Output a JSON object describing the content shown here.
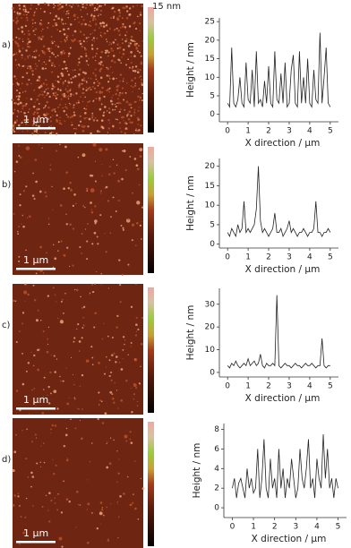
{
  "panels": [
    {
      "label": "a)",
      "scale_bar": "1 µm",
      "colorbar_label": "15 nm"
    },
    {
      "label": "b)",
      "scale_bar": "1 µm"
    },
    {
      "label": "c)",
      "scale_bar": "1 µm"
    },
    {
      "label": "d)",
      "scale_bar": "1 µm"
    }
  ],
  "chart_data": [
    {
      "type": "line",
      "x_label": "X direction / µm",
      "y_label": "Height / nm",
      "color": "#222222",
      "x": [
        0,
        0.1,
        0.2,
        0.3,
        0.4,
        0.5,
        0.6,
        0.7,
        0.8,
        0.9,
        1,
        1.1,
        1.2,
        1.3,
        1.4,
        1.5,
        1.6,
        1.7,
        1.8,
        1.9,
        2,
        2.1,
        2.2,
        2.3,
        2.4,
        2.5,
        2.6,
        2.7,
        2.8,
        2.9,
        3,
        3.1,
        3.2,
        3.3,
        3.4,
        3.5,
        3.6,
        3.7,
        3.8,
        3.9,
        4,
        4.1,
        4.2,
        4.3,
        4.4,
        4.5,
        4.6,
        4.7,
        4.8,
        4.9,
        5
      ],
      "values": [
        3,
        2,
        18,
        3,
        2,
        4,
        10,
        3,
        2,
        14,
        4,
        3,
        12,
        2,
        17,
        3,
        4,
        2,
        9,
        3,
        13,
        3,
        2,
        17,
        4,
        3,
        11,
        3,
        14,
        2,
        3,
        12,
        16,
        3,
        2,
        17,
        3,
        10,
        3,
        15,
        3,
        2,
        12,
        4,
        3,
        22,
        3,
        10,
        18,
        3,
        2
      ],
      "xlim": [
        -0.4,
        5.4
      ],
      "xticks": [
        0,
        1,
        2,
        3,
        4,
        5
      ],
      "ylim": [
        -2,
        26
      ],
      "yticks": [
        0,
        5,
        10,
        15,
        20,
        25
      ]
    },
    {
      "type": "line",
      "x_label": "X direction / µm",
      "y_label": "Height / nm",
      "color": "#222222",
      "x": [
        0,
        0.1,
        0.2,
        0.3,
        0.4,
        0.5,
        0.6,
        0.7,
        0.8,
        0.9,
        1,
        1.1,
        1.2,
        1.3,
        1.4,
        1.5,
        1.6,
        1.7,
        1.8,
        1.9,
        2,
        2.1,
        2.2,
        2.3,
        2.4,
        2.5,
        2.6,
        2.7,
        2.8,
        2.9,
        3,
        3.1,
        3.2,
        3.3,
        3.4,
        3.5,
        3.6,
        3.7,
        3.8,
        3.9,
        4,
        4.1,
        4.2,
        4.3,
        4.4,
        4.5,
        4.6,
        4.7,
        4.8,
        4.9,
        5
      ],
      "values": [
        3,
        2,
        4,
        3,
        2,
        5,
        3,
        4,
        11,
        3,
        4,
        3,
        4,
        5,
        9,
        20,
        6,
        3,
        4,
        3,
        2,
        3,
        4,
        8,
        3,
        3,
        4,
        2,
        3,
        4,
        6,
        3,
        4,
        3,
        2,
        3,
        3,
        4,
        3,
        2,
        3,
        3,
        4,
        11,
        3,
        3,
        2,
        3,
        3,
        4,
        3
      ],
      "xlim": [
        -0.4,
        5.4
      ],
      "xticks": [
        0,
        1,
        2,
        3,
        4,
        5
      ],
      "ylim": [
        -1,
        22
      ],
      "yticks": [
        0,
        5,
        10,
        15,
        20
      ]
    },
    {
      "type": "line",
      "x_label": "X direction / µm",
      "y_label": "Height / nm",
      "color": "#222222",
      "x": [
        0,
        0.1,
        0.2,
        0.3,
        0.4,
        0.5,
        0.6,
        0.7,
        0.8,
        0.9,
        1,
        1.1,
        1.2,
        1.3,
        1.4,
        1.5,
        1.6,
        1.7,
        1.8,
        1.9,
        2,
        2.1,
        2.2,
        2.3,
        2.4,
        2.5,
        2.6,
        2.7,
        2.8,
        2.9,
        3,
        3.1,
        3.2,
        3.3,
        3.4,
        3.5,
        3.6,
        3.7,
        3.8,
        3.9,
        4,
        4.1,
        4.2,
        4.3,
        4.4,
        4.5,
        4.6,
        4.7,
        4.8,
        4.9,
        5
      ],
      "values": [
        3,
        2,
        4,
        3,
        5,
        3,
        2,
        3,
        4,
        3,
        6,
        3,
        4,
        5,
        3,
        4,
        8,
        3,
        2,
        4,
        3,
        3,
        4,
        3,
        34,
        3,
        2,
        3,
        4,
        3,
        3,
        2,
        3,
        4,
        3,
        3,
        2,
        3,
        4,
        3,
        3,
        4,
        3,
        2,
        3,
        3,
        15,
        3,
        2,
        3,
        3
      ],
      "xlim": [
        -0.4,
        5.4
      ],
      "xticks": [
        0,
        1,
        2,
        3,
        4,
        5
      ],
      "ylim": [
        -2,
        37
      ],
      "yticks": [
        0,
        10,
        20,
        30
      ]
    },
    {
      "type": "line",
      "x_label": "X direction / µm",
      "y_label": "Height / nm",
      "color": "#222222",
      "x": [
        0,
        0.1,
        0.2,
        0.3,
        0.4,
        0.5,
        0.6,
        0.7,
        0.8,
        0.9,
        1,
        1.1,
        1.2,
        1.3,
        1.4,
        1.5,
        1.6,
        1.7,
        1.8,
        1.9,
        2,
        2.1,
        2.2,
        2.3,
        2.4,
        2.5,
        2.6,
        2.7,
        2.8,
        2.9,
        3,
        3.1,
        3.2,
        3.3,
        3.4,
        3.5,
        3.6,
        3.7,
        3.8,
        3.9,
        4,
        4.1,
        4.2,
        4.3,
        4.4,
        4.5,
        4.6,
        4.7,
        4.8,
        4.9,
        5
      ],
      "values": [
        2,
        3,
        1,
        2.5,
        3,
        2,
        1,
        4,
        2,
        3,
        1.5,
        2,
        6,
        1,
        3,
        7,
        2,
        1,
        5,
        2,
        3,
        1,
        6,
        2,
        4,
        1,
        3,
        2,
        5,
        3,
        1,
        2,
        6,
        3,
        2,
        4,
        7,
        2,
        3,
        1,
        5,
        3,
        2,
        7.5,
        3,
        6,
        2,
        3,
        1,
        3,
        2
      ],
      "xlim": [
        -0.4,
        5.4
      ],
      "xticks": [
        0,
        1,
        2,
        3,
        4,
        5
      ],
      "ylim": [
        -1,
        8.6
      ],
      "yticks": [
        0,
        2,
        4,
        6,
        8
      ]
    }
  ]
}
